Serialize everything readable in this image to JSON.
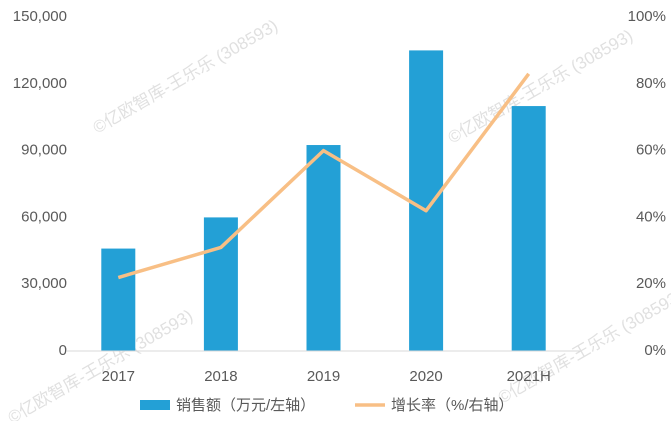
{
  "chart_data": {
    "type": "bar-line",
    "categories": [
      "2017",
      "2018",
      "2019",
      "2020",
      "2021H"
    ],
    "series": [
      {
        "name": "销售额（万元/左轴）",
        "color": "#23a0d6",
        "type": "bar",
        "values": [
          46000,
          60000,
          92500,
          135000,
          110000
        ]
      },
      {
        "name": "增长率（%/右轴）",
        "color": "#f8bf85",
        "type": "line",
        "axis": "y2",
        "values": [
          22,
          31,
          60,
          42,
          83
        ]
      }
    ],
    "ylim": [
      0,
      150000
    ],
    "yticks": [
      0,
      {
        "value": 30000,
        "label": "30,000"
      },
      {
        "value": 60000,
        "label": "60,000"
      },
      {
        "value": 90000,
        "label": "90,000"
      },
      {
        "value": 120000,
        "label": "120,000"
      },
      {
        "value": 150000,
        "label": "150,000"
      }
    ],
    "y2lim": [
      0,
      100
    ],
    "y2ticks": [
      {
        "value": 0,
        "label": "0%"
      },
      {
        "value": 20,
        "label": "20%"
      },
      {
        "value": 40,
        "label": "40%"
      },
      {
        "value": 60,
        "label": "60%"
      },
      {
        "value": 80,
        "label": "80%"
      },
      {
        "value": 100,
        "label": "100%"
      }
    ],
    "grid": false,
    "legend": "bottom",
    "watermark": "©亿欧智库-王乐乐 (308593)"
  }
}
